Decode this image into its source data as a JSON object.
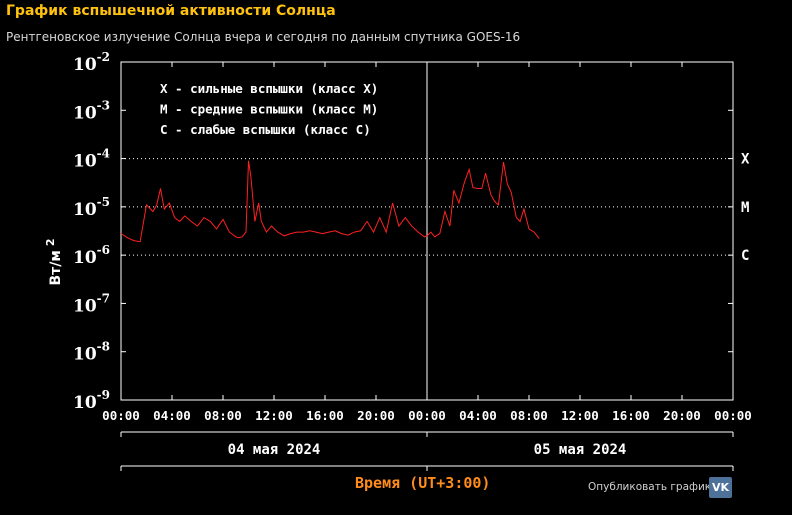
{
  "header": {
    "title": "График вспышечной активности Солнца",
    "subtitle": "Рентгеновское излучение Солнца вчера и сегодня по данным спутника GOES-16"
  },
  "footer": {
    "timezone_label": "Время (UT+3:00)",
    "publish_label": "Опубликовать график:",
    "vk_icon": "vk-icon",
    "vk_label": "VK"
  },
  "colors": {
    "series": "#ff2020",
    "axis": "#ffffff",
    "title": "#ffc20e",
    "timezone": "#ff8c1a",
    "vk": "#4d7198"
  },
  "chart_data": {
    "type": "line",
    "ylabel": "Вт/м",
    "ylabel_power": "2",
    "y_scale": "log",
    "ylim": [
      1e-09,
      0.01
    ],
    "y_ticks": [
      {
        "base": "10",
        "power": "-2",
        "value": 0.01
      },
      {
        "base": "10",
        "power": "-3",
        "value": 0.001
      },
      {
        "base": "10",
        "power": "-4",
        "value": 0.0001
      },
      {
        "base": "10",
        "power": "-5",
        "value": 1e-05
      },
      {
        "base": "10",
        "power": "-6",
        "value": 1e-06
      },
      {
        "base": "10",
        "power": "-7",
        "value": 1e-07
      },
      {
        "base": "10",
        "power": "-8",
        "value": 1e-08
      },
      {
        "base": "10",
        "power": "-9",
        "value": 1e-09
      }
    ],
    "x_tick_labels": [
      "00:00",
      "04:00",
      "08:00",
      "12:00",
      "16:00",
      "20:00",
      "00:00",
      "04:00",
      "08:00",
      "12:00",
      "16:00",
      "20:00",
      "00:00"
    ],
    "xlim_hours": [
      0,
      48
    ],
    "days": [
      {
        "label": "04 мая 2024",
        "start_hour": 0,
        "end_hour": 24
      },
      {
        "label": "05 мая 2024",
        "start_hour": 24,
        "end_hour": 48
      }
    ],
    "classes": [
      {
        "label": "X",
        "value": 0.0001
      },
      {
        "label": "M",
        "value": 1e-05
      },
      {
        "label": "C",
        "value": 1e-06
      }
    ],
    "legend": [
      "X - сильные вспышки (класс X)",
      "M - средние вспышки (класс M)",
      "C - слабые вспышки (класс C)"
    ],
    "grid": "dotted lines at class levels",
    "series": [
      {
        "x_hours": [
          0,
          0.5,
          1,
          1.5,
          2,
          2.5,
          2.8,
          3.1,
          3.4,
          3.8,
          4.2,
          4.6,
          5,
          5.5,
          6,
          6.5,
          7,
          7.5,
          8,
          8.5,
          9,
          9.2,
          9.5,
          9.8,
          10,
          10.2,
          10.5,
          10.8,
          11,
          11.4,
          11.8,
          12.3,
          12.8,
          13.3,
          13.8,
          14.3,
          14.8,
          15.3,
          15.8,
          16.3,
          16.8,
          17.3,
          17.8,
          18.3,
          18.8,
          19.3,
          19.8,
          20.3,
          20.8,
          21.3,
          21.8,
          22.3,
          22.8,
          23.3,
          23.8,
          24,
          24.3,
          24.6,
          25,
          25.4,
          25.8,
          26.1,
          26.5,
          26.9,
          27.3,
          27.6,
          28,
          28.3,
          28.6,
          29,
          29.3,
          29.6,
          30,
          30.3,
          30.6,
          31,
          31.3,
          31.6,
          32,
          32.4,
          32.8
        ],
        "y": [
          2.8e-06,
          2.3e-06,
          2e-06,
          1.9e-06,
          1.1e-05,
          8e-06,
          1.1e-05,
          2.4e-05,
          9e-06,
          1.2e-05,
          6e-06,
          5e-06,
          6.5e-06,
          5e-06,
          4e-06,
          6e-06,
          5e-06,
          3.5e-06,
          5.5e-06,
          3e-06,
          2.4e-06,
          2.3e-06,
          2.4e-06,
          3e-06,
          9e-05,
          4e-05,
          5e-06,
          1.2e-05,
          5e-06,
          3e-06,
          4e-06,
          3e-06,
          2.5e-06,
          2.8e-06,
          3e-06,
          3e-06,
          3.2e-06,
          3e-06,
          2.8e-06,
          3e-06,
          3.2e-06,
          2.8e-06,
          2.6e-06,
          3e-06,
          3.2e-06,
          5e-06,
          3e-06,
          6e-06,
          3e-06,
          1.2e-05,
          4e-06,
          6e-06,
          4e-06,
          3e-06,
          2.4e-06,
          2.5e-06,
          3e-06,
          2.4e-06,
          2.8e-06,
          8e-06,
          4e-06,
          2.2e-05,
          1.2e-05,
          3e-05,
          6e-05,
          2.5e-05,
          2.4e-05,
          2.4e-05,
          5e-05,
          1.8e-05,
          1.3e-05,
          1.1e-05,
          8.5e-05,
          3e-05,
          2e-05,
          6e-06,
          5e-06,
          9e-06,
          3.5e-06,
          3e-06,
          2.2e-06
        ]
      }
    ]
  }
}
